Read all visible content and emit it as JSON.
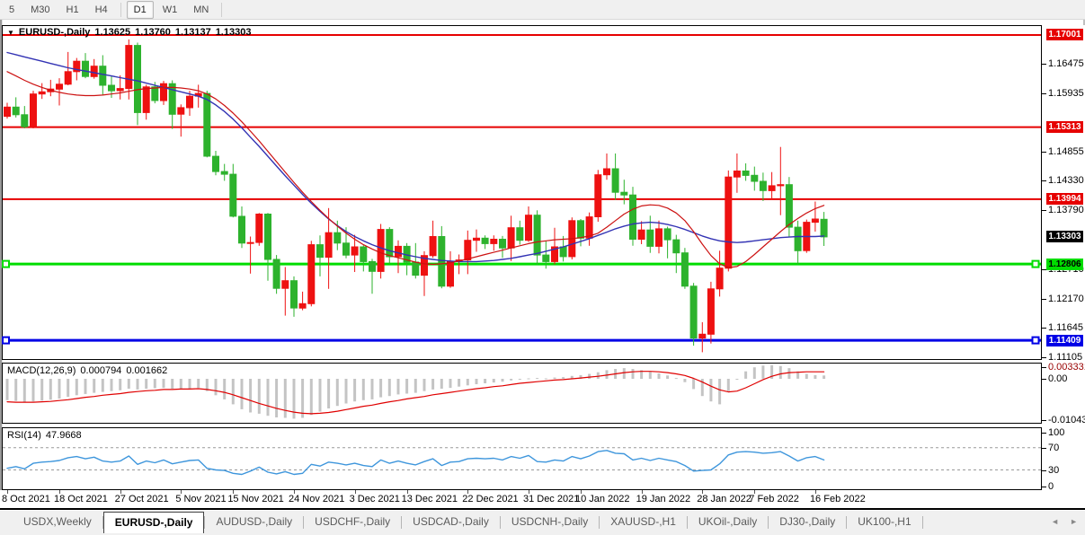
{
  "toolbar": {
    "timeframes": [
      "5",
      "M30",
      "H1",
      "H4",
      "D1",
      "W1",
      "MN"
    ],
    "active": "D1"
  },
  "window": {
    "title_symbol": "EURUSD-,Daily",
    "quote": {
      "o": "1.13625",
      "h": "1.13760",
      "l": "1.13137",
      "c": "1.13303"
    }
  },
  "tabs": {
    "items": [
      "USDX,Weekly",
      "EURUSD-,Daily",
      "AUDUSD-,Daily",
      "USDCHF-,Daily",
      "USDCAD-,Daily",
      "USDCNH-,Daily",
      "XAUUSD-,H1",
      "UKOil-,Daily",
      "DJ30-,Daily",
      "UK100-,H1"
    ],
    "active": "EURUSD-,Daily",
    "left_arrow": "◄",
    "right_arrow": "►"
  },
  "chart_data": {
    "type": "candlestick",
    "symbol": "EURUSD",
    "timeframe": "Daily",
    "colors": {
      "bull": "#ee1111",
      "bear": "#2db22d",
      "ma_fast": "#cc1111",
      "ma_slow": "#3333b4",
      "macd_hist": "#c4c4c4",
      "macd_signal": "#e00000",
      "rsi": "#3e96dc",
      "level_dash": "#9a9a9a"
    },
    "x_labels": [
      {
        "i": 0,
        "text": "8 Oct 2021"
      },
      {
        "i": 6,
        "text": "18 Oct 2021"
      },
      {
        "i": 13,
        "text": "27 Oct 2021"
      },
      {
        "i": 20,
        "text": "5 Nov 2021"
      },
      {
        "i": 26,
        "text": "15 Nov 2021"
      },
      {
        "i": 33,
        "text": "24 Nov 2021"
      },
      {
        "i": 40,
        "text": "3 Dec 2021"
      },
      {
        "i": 46,
        "text": "13 Dec 2021"
      },
      {
        "i": 53,
        "text": "22 Dec 2021"
      },
      {
        "i": 60,
        "text": "31 Dec 2021"
      },
      {
        "i": 66,
        "text": "10 Jan 2022"
      },
      {
        "i": 73,
        "text": "19 Jan 2022"
      },
      {
        "i": 80,
        "text": "28 Jan 2022"
      },
      {
        "i": 86,
        "text": "7 Feb 2022"
      },
      {
        "i": 93,
        "text": "16 Feb 2022"
      }
    ],
    "ohlc": {
      "open": [
        1.1551,
        1.1568,
        1.1554,
        1.1532,
        1.1592,
        1.1596,
        1.1601,
        1.161,
        1.1633,
        1.1652,
        1.1624,
        1.1643,
        1.1608,
        1.1598,
        1.1602,
        1.1681,
        1.1558,
        1.1605,
        1.158,
        1.1611,
        1.1555,
        1.1567,
        1.1588,
        1.1593,
        1.1478,
        1.145,
        1.1445,
        1.1368,
        1.1319,
        1.132,
        1.1372,
        1.1289,
        1.1236,
        1.125,
        1.12,
        1.1208,
        1.1316,
        1.1293,
        1.1338,
        1.1319,
        1.1297,
        1.1312,
        1.1285,
        1.1267,
        1.1344,
        1.1294,
        1.1313,
        1.1284,
        1.126,
        1.1296,
        1.1331,
        1.124,
        1.1285,
        1.1288,
        1.1324,
        1.1328,
        1.1318,
        1.1326,
        1.131,
        1.1347,
        1.1324,
        1.137,
        1.1297,
        1.1285,
        1.1312,
        1.1294,
        1.136,
        1.1328,
        1.1367,
        1.1444,
        1.1455,
        1.1412,
        1.1407,
        1.1326,
        1.1343,
        1.1313,
        1.1345,
        1.1325,
        1.1301,
        1.124,
        1.1145,
        1.1152,
        1.1235,
        1.1273,
        1.144,
        1.1451,
        1.1443,
        1.1432,
        1.1415,
        1.1424,
        1.1426,
        1.1348,
        1.1305,
        1.1357,
        1.13625
      ],
      "high": [
        1.1576,
        1.1586,
        1.157,
        1.1598,
        1.1612,
        1.1618,
        1.1621,
        1.1669,
        1.1658,
        1.1667,
        1.1656,
        1.1663,
        1.1626,
        1.1626,
        1.1692,
        1.1686,
        1.1609,
        1.1614,
        1.1616,
        1.1617,
        1.1573,
        1.1598,
        1.1609,
        1.1598,
        1.1488,
        1.1464,
        1.1464,
        1.1386,
        1.1331,
        1.1374,
        1.1374,
        1.1297,
        1.1275,
        1.1258,
        1.123,
        1.1323,
        1.1333,
        1.1383,
        1.136,
        1.1348,
        1.1334,
        1.1315,
        1.129,
        1.1354,
        1.1348,
        1.1324,
        1.1319,
        1.1319,
        1.1304,
        1.136,
        1.135,
        1.1304,
        1.1298,
        1.1342,
        1.1344,
        1.1333,
        1.1333,
        1.1332,
        1.1369,
        1.136,
        1.1386,
        1.1379,
        1.1323,
        1.1347,
        1.1332,
        1.1366,
        1.1363,
        1.1375,
        1.1453,
        1.1483,
        1.1483,
        1.1435,
        1.1422,
        1.1359,
        1.1369,
        1.136,
        1.1349,
        1.1334,
        1.131,
        1.1246,
        1.1174,
        1.1248,
        1.1305,
        1.1452,
        1.1483,
        1.1465,
        1.1459,
        1.1448,
        1.1449,
        1.1495,
        1.144,
        1.136,
        1.1362,
        1.1395,
        1.1376
      ],
      "low": [
        1.1547,
        1.1549,
        1.1529,
        1.1529,
        1.1583,
        1.1588,
        1.1571,
        1.1608,
        1.1617,
        1.1621,
        1.162,
        1.159,
        1.1585,
        1.1582,
        1.1582,
        1.1535,
        1.1545,
        1.1575,
        1.1572,
        1.1528,
        1.1514,
        1.1552,
        1.1567,
        1.1476,
        1.1443,
        1.1433,
        1.1366,
        1.131,
        1.1263,
        1.1314,
        1.125,
        1.1226,
        1.1186,
        1.1184,
        1.1196,
        1.1203,
        1.1258,
        1.1235,
        1.1306,
        1.1291,
        1.1266,
        1.1267,
        1.1226,
        1.1254,
        1.128,
        1.1264,
        1.126,
        1.1254,
        1.1222,
        1.1292,
        1.1236,
        1.1237,
        1.1262,
        1.1262,
        1.1303,
        1.1308,
        1.1305,
        1.1292,
        1.1286,
        1.1316,
        1.1321,
        1.1279,
        1.1272,
        1.128,
        1.1285,
        1.1289,
        1.1313,
        1.1314,
        1.1358,
        1.1435,
        1.1398,
        1.139,
        1.1314,
        1.1317,
        1.1301,
        1.13,
        1.1291,
        1.1264,
        1.1235,
        1.1131,
        1.1119,
        1.1135,
        1.1221,
        1.1267,
        1.1411,
        1.1433,
        1.1415,
        1.1396,
        1.1398,
        1.137,
        1.133,
        1.128,
        1.1301,
        1.134,
        1.13137
      ],
      "close": [
        1.1568,
        1.1554,
        1.1532,
        1.1592,
        1.1596,
        1.1601,
        1.161,
        1.1633,
        1.1652,
        1.1624,
        1.1643,
        1.1608,
        1.1598,
        1.1602,
        1.1681,
        1.1558,
        1.1605,
        1.158,
        1.1611,
        1.1555,
        1.1567,
        1.1588,
        1.1593,
        1.1478,
        1.145,
        1.1445,
        1.1368,
        1.1319,
        1.132,
        1.1372,
        1.1289,
        1.1236,
        1.125,
        1.12,
        1.1208,
        1.1316,
        1.1293,
        1.1338,
        1.1319,
        1.1297,
        1.1312,
        1.1285,
        1.1267,
        1.1344,
        1.1294,
        1.1313,
        1.1284,
        1.126,
        1.1296,
        1.1331,
        1.124,
        1.1285,
        1.1288,
        1.1324,
        1.1328,
        1.1318,
        1.1326,
        1.131,
        1.1347,
        1.1324,
        1.137,
        1.1297,
        1.1285,
        1.1312,
        1.1294,
        1.136,
        1.1328,
        1.1367,
        1.1444,
        1.1455,
        1.1412,
        1.1407,
        1.1326,
        1.1343,
        1.1313,
        1.1345,
        1.1325,
        1.1301,
        1.124,
        1.1145,
        1.1152,
        1.1235,
        1.1273,
        1.144,
        1.1451,
        1.1443,
        1.1432,
        1.1415,
        1.1424,
        1.1426,
        1.1348,
        1.1305,
        1.1357,
        1.1363,
        1.13303
      ]
    },
    "main_pane": {
      "ylim": [
        1.11065,
        1.17165
      ],
      "hlines": [
        {
          "price": 1.17001,
          "color": "#e60000",
          "width": 2,
          "anchors": false
        },
        {
          "price": 1.15313,
          "color": "#e60000",
          "width": 2,
          "anchors": false
        },
        {
          "price": 1.13994,
          "color": "#e60000",
          "width": 2,
          "anchors": false
        },
        {
          "price": 1.12806,
          "color": "#00dd00",
          "width": 3,
          "anchors": true
        },
        {
          "price": 1.11409,
          "color": "#0000e6",
          "width": 3,
          "anchors": true
        }
      ],
      "axis_ticks": [
        "1.16475",
        "1.15935",
        "1.14855",
        "1.14330",
        "1.13790",
        "1.12710",
        "1.12170",
        "1.11645",
        "1.11105"
      ],
      "badges": [
        {
          "text": "1.17001",
          "bg": "#e60000",
          "fg": "#ffffff"
        },
        {
          "text": "1.15313",
          "bg": "#e60000",
          "fg": "#ffffff"
        },
        {
          "text": "1.13994",
          "bg": "#e60000",
          "fg": "#ffffff"
        },
        {
          "text": "1.13303",
          "bg": "#000000",
          "fg": "#ffffff"
        },
        {
          "text": "1.12806",
          "bg": "#00dd00",
          "fg": "#000000"
        },
        {
          "text": "1.11409",
          "bg": "#0000e6",
          "fg": "#ffffff"
        }
      ],
      "ma_fast": [
        1.1633,
        1.1625,
        1.1617,
        1.161,
        1.1604,
        1.1599,
        1.1595,
        1.1592,
        1.159,
        1.1589,
        1.1589,
        1.159,
        1.1592,
        1.1594,
        1.1597,
        1.16,
        1.1602,
        1.1603,
        1.1604,
        1.1604,
        1.1603,
        1.1601,
        1.1598,
        1.1592,
        1.1583,
        1.1571,
        1.1557,
        1.1541,
        1.1524,
        1.1506,
        1.1487,
        1.1468,
        1.1449,
        1.143,
        1.1412,
        1.1395,
        1.1379,
        1.1364,
        1.135,
        1.1337,
        1.1326,
        1.1316,
        1.1308,
        1.1301,
        1.1296,
        1.1292,
        1.1288,
        1.1284,
        1.1281,
        1.128,
        1.1281,
        1.1283,
        1.1286,
        1.129,
        1.1294,
        1.1298,
        1.1302,
        1.1306,
        1.131,
        1.1314,
        1.1318,
        1.1321,
        1.1323,
        1.1325,
        1.1326,
        1.1327,
        1.1329,
        1.1332,
        1.1337,
        1.1348,
        1.136,
        1.1372,
        1.1381,
        1.1387,
        1.1389,
        1.1388,
        1.1383,
        1.1374,
        1.136,
        1.134,
        1.1317,
        1.1296,
        1.1281,
        1.1274,
        1.1276,
        1.1285,
        1.1298,
        1.1312,
        1.1326,
        1.134,
        1.1353,
        1.1364,
        1.1374,
        1.1382,
        1.1388
      ],
      "ma_slow": [
        1.1668,
        1.1664,
        1.166,
        1.1656,
        1.1652,
        1.1648,
        1.1644,
        1.164,
        1.1637,
        1.1634,
        1.1631,
        1.1628,
        1.1625,
        1.1622,
        1.1619,
        1.1616,
        1.1612,
        1.1608,
        1.1604,
        1.16,
        1.1596,
        1.1592,
        1.1588,
        1.1582,
        1.1572,
        1.156,
        1.1546,
        1.153,
        1.1513,
        1.1496,
        1.1478,
        1.146,
        1.1442,
        1.1425,
        1.1408,
        1.1392,
        1.1377,
        1.1363,
        1.1351,
        1.134,
        1.1331,
        1.1323,
        1.1316,
        1.131,
        1.1305,
        1.1301,
        1.1297,
        1.1294,
        1.1291,
        1.1289,
        1.1287,
        1.1286,
        1.1285,
        1.1285,
        1.1285,
        1.1286,
        1.1287,
        1.1289,
        1.1291,
        1.1294,
        1.1297,
        1.13,
        1.1304,
        1.1308,
        1.1312,
        1.1317,
        1.1322,
        1.1327,
        1.1333,
        1.1339,
        1.1345,
        1.135,
        1.1354,
        1.1356,
        1.1357,
        1.1356,
        1.1353,
        1.1349,
        1.1344,
        1.1338,
        1.1332,
        1.1327,
        1.1323,
        1.1321,
        1.132,
        1.1321,
        1.1323,
        1.1325,
        1.1327,
        1.1329,
        1.133,
        1.1331,
        1.1331,
        1.1331,
        1.1332
      ]
    },
    "macd_pane": {
      "label": "MACD(12,26,9)",
      "value_main": "0.000794",
      "value_signal": "0.001662",
      "ylim": [
        -0.01071,
        0.00371
      ],
      "axis_labels": [
        {
          "text": "0.003331",
          "v": 0.003331,
          "color": "#990000"
        },
        {
          "text": "0.00",
          "v": 0.0,
          "color": "#000000"
        },
        {
          "text": "-0.01043",
          "v": -0.01043,
          "color": "#000000"
        }
      ],
      "histogram": [
        -0.0052,
        -0.0054,
        -0.0056,
        -0.0055,
        -0.0053,
        -0.0051,
        -0.0048,
        -0.0044,
        -0.004,
        -0.0037,
        -0.0034,
        -0.0032,
        -0.003,
        -0.0028,
        -0.0024,
        -0.0026,
        -0.0024,
        -0.0023,
        -0.0022,
        -0.0024,
        -0.0025,
        -0.0024,
        -0.0022,
        -0.003,
        -0.004,
        -0.005,
        -0.0062,
        -0.0074,
        -0.0082,
        -0.0085,
        -0.009,
        -0.0094,
        -0.0095,
        -0.0097,
        -0.0095,
        -0.0088,
        -0.008,
        -0.0072,
        -0.0066,
        -0.006,
        -0.0055,
        -0.0052,
        -0.005,
        -0.0045,
        -0.0042,
        -0.0038,
        -0.0036,
        -0.0034,
        -0.003,
        -0.0026,
        -0.0024,
        -0.0022,
        -0.0019,
        -0.0016,
        -0.0013,
        -0.0011,
        -0.0009,
        -0.0007,
        -0.0004,
        -0.0002,
        0.0001,
        0.0002,
        0.0001,
        0.0003,
        0.0004,
        0.0007,
        0.0009,
        0.0012,
        0.0016,
        0.0021,
        0.0024,
        0.0026,
        0.0024,
        0.0021,
        0.0017,
        0.0013,
        0.0008,
        0.0002,
        -0.0008,
        -0.0025,
        -0.0042,
        -0.0055,
        -0.0062,
        -0.003,
        0.0,
        0.0018,
        0.0028,
        0.0032,
        0.0033,
        0.0031,
        0.0026,
        0.0018,
        0.0012,
        0.0009,
        0.0008
      ],
      "signal": [
        -0.0056,
        -0.0057,
        -0.0057,
        -0.0057,
        -0.0056,
        -0.0055,
        -0.0053,
        -0.0051,
        -0.0048,
        -0.0045,
        -0.0043,
        -0.004,
        -0.0038,
        -0.0036,
        -0.0033,
        -0.0031,
        -0.0029,
        -0.0028,
        -0.0026,
        -0.0026,
        -0.0025,
        -0.0025,
        -0.0024,
        -0.0026,
        -0.0029,
        -0.0033,
        -0.0039,
        -0.0046,
        -0.0053,
        -0.006,
        -0.0066,
        -0.0072,
        -0.0077,
        -0.0081,
        -0.0084,
        -0.0085,
        -0.0084,
        -0.0082,
        -0.0079,
        -0.0075,
        -0.0071,
        -0.0067,
        -0.0064,
        -0.006,
        -0.0056,
        -0.0053,
        -0.0049,
        -0.0046,
        -0.0043,
        -0.0039,
        -0.0036,
        -0.0033,
        -0.003,
        -0.0027,
        -0.0024,
        -0.0022,
        -0.0019,
        -0.0017,
        -0.0014,
        -0.0011,
        -0.0009,
        -0.0007,
        -0.0005,
        -0.0003,
        -0.0002,
        0.0,
        0.0002,
        0.0004,
        0.0006,
        0.0009,
        0.0012,
        0.0015,
        0.0017,
        0.0018,
        0.0018,
        0.0017,
        0.0015,
        0.0012,
        0.0008,
        0.0001,
        -0.0008,
        -0.0018,
        -0.0027,
        -0.0032,
        -0.003,
        -0.0022,
        -0.0012,
        -0.0002,
        0.0006,
        0.0012,
        0.0015,
        0.0016,
        0.0017,
        0.0017,
        0.0017
      ]
    },
    "rsi_pane": {
      "label": "RSI(14)",
      "value": "47.9668",
      "ylim": [
        -3,
        105
      ],
      "levels": [
        70,
        30
      ],
      "axis_labels": [
        {
          "text": "100",
          "v": 100
        },
        {
          "text": "70",
          "v": 70
        },
        {
          "text": "30",
          "v": 30
        },
        {
          "text": "0",
          "v": 0
        }
      ],
      "series": [
        33,
        36,
        32,
        42,
        44,
        45,
        47,
        52,
        54,
        50,
        53,
        46,
        44,
        46,
        55,
        40,
        46,
        43,
        48,
        41,
        44,
        47,
        48,
        33,
        30,
        29,
        24,
        22,
        28,
        35,
        26,
        23,
        27,
        22,
        24,
        40,
        37,
        44,
        42,
        39,
        42,
        38,
        36,
        48,
        42,
        46,
        42,
        39,
        45,
        50,
        38,
        44,
        45,
        50,
        51,
        50,
        51,
        48,
        54,
        51,
        56,
        45,
        44,
        48,
        46,
        54,
        50,
        55,
        63,
        65,
        60,
        59,
        48,
        51,
        47,
        51,
        48,
        45,
        38,
        28,
        29,
        30,
        41,
        57,
        62,
        63,
        62,
        60,
        61,
        63,
        55,
        46,
        52,
        54,
        48
      ]
    }
  }
}
